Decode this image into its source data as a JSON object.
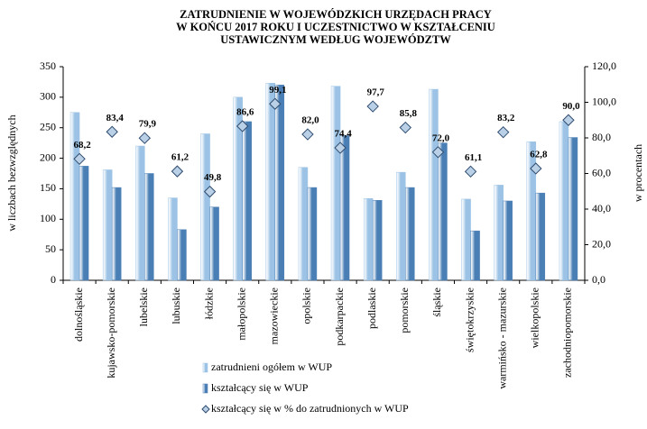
{
  "chart_data": {
    "type": "bar",
    "title": [
      "ZATRUDNIENIE W WOJEWÓDZKICH URZĘDACH PRACY",
      "W KOŃCU 2017 ROKU  I  UCZESTNICTWO W KSZTAŁCENIU",
      "USTAWICZNYM WEDŁUG WOJEWÓDZTW"
    ],
    "ylabel": "w liczbach bezwzględnych",
    "y2label": "w procentach",
    "categories": [
      "dolnośląskie",
      "kujawsko-pomorskie",
      "lubelskie",
      "lubuskie",
      "łódzkie",
      "małopolskie",
      "mazowieckie",
      "opolskie",
      "podkarpackie",
      "podlaskie",
      "pomorskie",
      "śląskie",
      "świętokrzyskie",
      "warmińsko - mazurskie",
      "wielkopolskie",
      "zachodniopomorskie"
    ],
    "series": [
      {
        "name": "zatrudnieni ogółem w WUP",
        "color": "#9cc3e5",
        "values": [
          275,
          181,
          220,
          135,
          240,
          300,
          323,
          185,
          318,
          134,
          177,
          313,
          133,
          156,
          227,
          260
        ]
      },
      {
        "name": "kształcący się w WUP",
        "color": "#4a7fb5",
        "values": [
          187,
          152,
          175,
          83,
          120,
          260,
          320,
          152,
          237,
          131,
          152,
          225,
          81,
          130,
          143,
          234
        ]
      },
      {
        "name": "kształcący się w % do zatrudnionych w WUP",
        "color": "#b9d0e6",
        "axis": "y2",
        "marker": "diamond",
        "values": [
          68.2,
          83.4,
          79.9,
          61.2,
          49.8,
          86.6,
          99.1,
          82.0,
          74.4,
          97.7,
          85.8,
          72.0,
          61.1,
          83.2,
          62.8,
          90.0
        ],
        "value_labels": [
          "68,2",
          "83,4",
          "79,9",
          "61,2",
          "49,8",
          "86,6",
          "99,1",
          "82,0",
          "74,4",
          "97,7",
          "85,8",
          "72,0",
          "61,1",
          "83,2",
          "62,8",
          "90,0"
        ]
      }
    ],
    "ylim": [
      0,
      350
    ],
    "yticks": [
      0,
      50,
      100,
      150,
      200,
      250,
      300,
      350
    ],
    "y2lim": [
      0,
      120
    ],
    "y2ticks": [
      {
        "value": 0,
        "label": "0,0"
      },
      {
        "value": 20,
        "label": "20,0"
      },
      {
        "value": 40,
        "label": "40,0"
      },
      {
        "value": 60,
        "label": "60,0"
      },
      {
        "value": 80,
        "label": "80,0"
      },
      {
        "value": 100,
        "label": "100,0"
      },
      {
        "value": 120,
        "label": "120,0"
      }
    ],
    "grid": false,
    "legend": "bottom"
  }
}
